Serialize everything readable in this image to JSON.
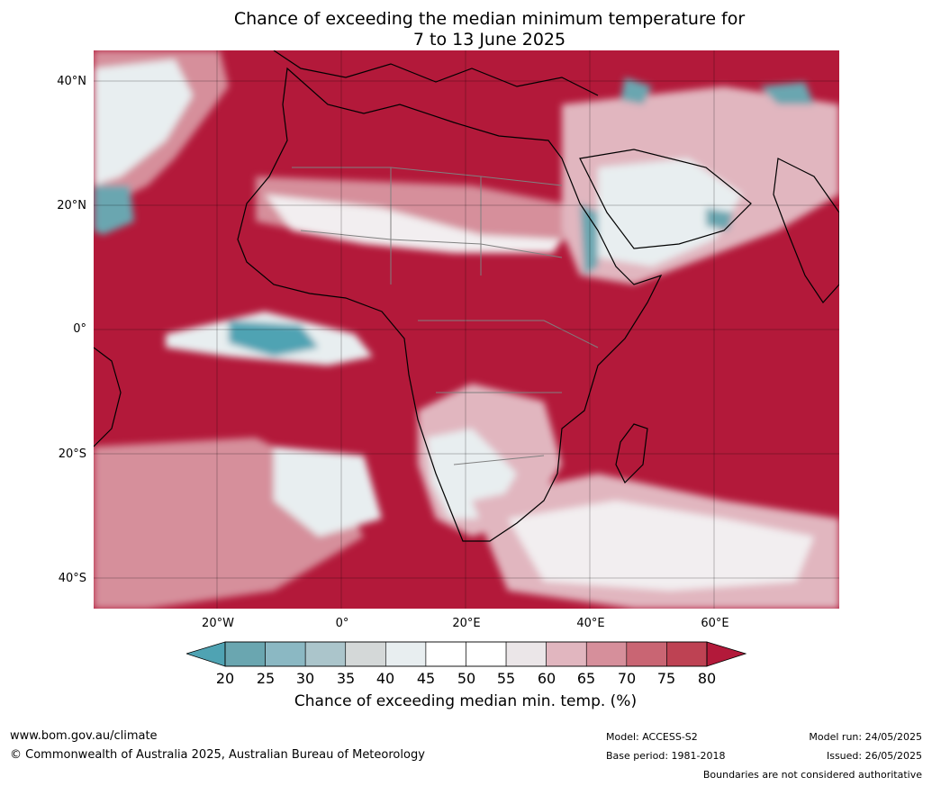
{
  "title": {
    "line1": "Chance of exceeding the median minimum temperature for",
    "line2": "7 to 13 June 2025"
  },
  "map": {
    "latitude_labels": [
      "40°N",
      "20°N",
      "0°",
      "20°S",
      "40°S"
    ],
    "longitude_labels": [
      "20°W",
      "0°",
      "20°E",
      "40°E",
      "60°E"
    ],
    "dominant_color": "#b3193a",
    "ocean_color": "#b3193a"
  },
  "colorbar": {
    "ticks": [
      "20",
      "25",
      "30",
      "35",
      "40",
      "45",
      "50",
      "55",
      "60",
      "65",
      "70",
      "75",
      "80"
    ],
    "colors": [
      "#6aa6b0",
      "#8bb8c3",
      "#abc5cb",
      "#d4d8d8",
      "#e8eef0",
      "#ffffff",
      "#ffffff",
      "#ebe6e8",
      "#e1b6bf",
      "#d68f9b",
      "#c96573",
      "#be4253"
    ],
    "below_color": "#4fa3b3",
    "above_color": "#b3193a",
    "label": "Chance of exceeding median min. temp. (%)"
  },
  "footer": {
    "website": "www.bom.gov.au/climate",
    "copyright": "© Commonwealth of Australia 2025, Australian Bureau of Meteorology",
    "model": "Model: ACCESS-S2",
    "base_period": "Base period: 1981-2018",
    "model_run": "Model run: 24/05/2025",
    "issued": "Issued: 26/05/2025",
    "disclaimer": "Boundaries are not considered authoritative"
  }
}
